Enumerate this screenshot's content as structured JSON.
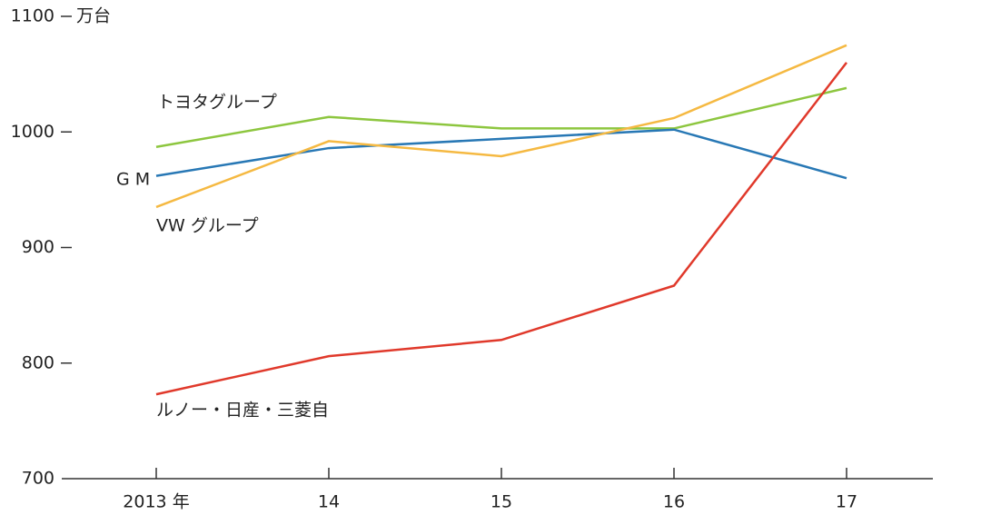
{
  "chart_data": {
    "type": "line",
    "ylabel": "万台",
    "categories": [
      "2013 年",
      "14",
      "15",
      "16",
      "17"
    ],
    "series": [
      {
        "name": "トヨタグループ",
        "color": "#8dc63f",
        "values": [
          987,
          1013,
          1003,
          1003,
          1038
        ]
      },
      {
        "name": "GM",
        "color": "#2878b5",
        "values": [
          962,
          986,
          994,
          1002,
          960
        ]
      },
      {
        "name": "VW グループ",
        "color": "#f5b942",
        "values": [
          935,
          992,
          979,
          1012,
          1075
        ]
      },
      {
        "name": "ルノー・日産・三菱自",
        "color": "#e0392b",
        "values": [
          773,
          806,
          820,
          867,
          1060
        ]
      }
    ],
    "ylim": [
      700,
      1100
    ],
    "yticks": [
      700,
      800,
      900,
      1000,
      1100
    ],
    "grid": false
  }
}
